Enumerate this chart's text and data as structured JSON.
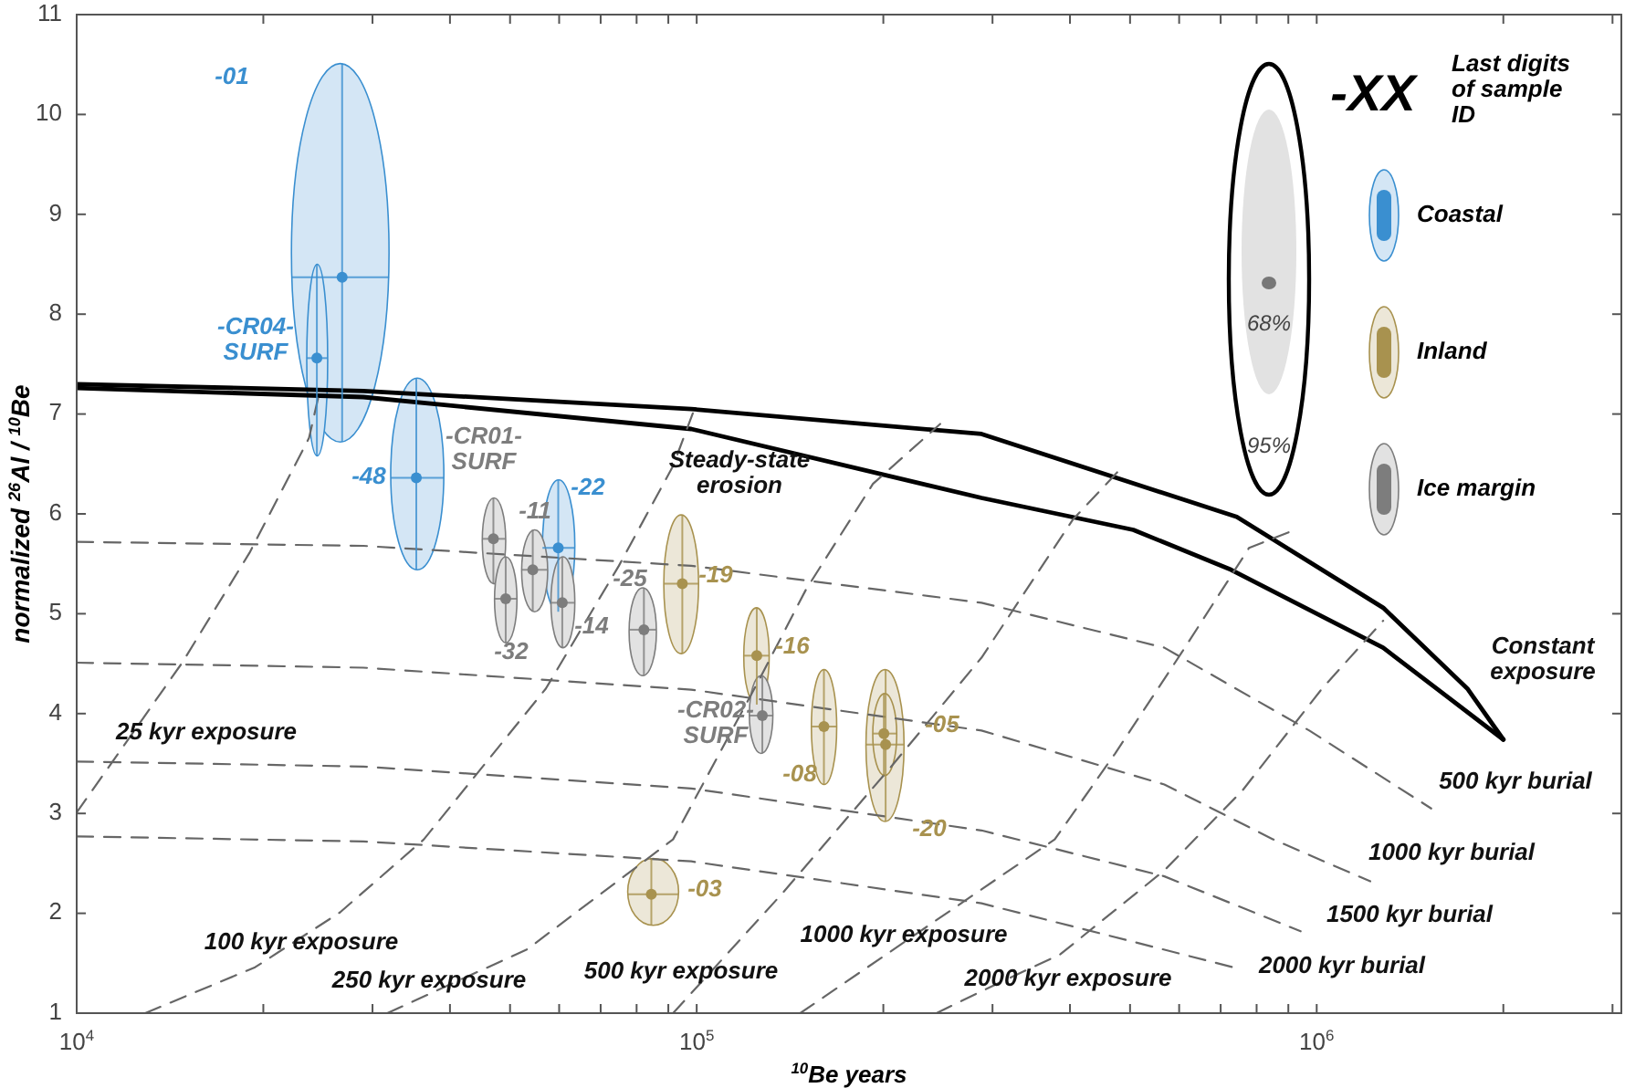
{
  "chart_data": {
    "type": "scatter",
    "xlabel": "$^{10}$Be years",
    "ylabel": "normalized $^{26}$Al / $^{10}$Be",
    "legend_title": "Last digits of sample ID",
    "log": "x",
    "legend": "top right",
    "grid": false,
    "xlim": [
      10000,
      3100000
    ],
    "ylim": [
      1,
      11
    ],
    "xticks": [
      {
        "value": 10000,
        "label": "10$^{4}$"
      },
      {
        "value": 20000,
        "label": null
      },
      {
        "value": 30000,
        "label": null
      },
      {
        "value": 40000,
        "label": null
      },
      {
        "value": 50000,
        "label": null
      },
      {
        "value": 60000,
        "label": null
      },
      {
        "value": 70000,
        "label": null
      },
      {
        "value": 80000,
        "label": null
      },
      {
        "value": 90000,
        "label": null
      },
      {
        "value": 100000,
        "label": "10$^{5}$"
      },
      {
        "value": 200000,
        "label": null
      },
      {
        "value": 300000,
        "label": null
      },
      {
        "value": 400000,
        "label": null
      },
      {
        "value": 500000,
        "label": null
      },
      {
        "value": 600000,
        "label": null
      },
      {
        "value": 700000,
        "label": null
      },
      {
        "value": 800000,
        "label": null
      },
      {
        "value": 900000,
        "label": null
      },
      {
        "value": 1000000,
        "label": "10$^{6}$"
      },
      {
        "value": 2000000,
        "label": null
      },
      {
        "value": 3000000,
        "label": null
      }
    ],
    "yticks": [
      1,
      2,
      3,
      4,
      5,
      6,
      7,
      8,
      9,
      10,
      11
    ],
    "series": [
      {
        "type": "line",
        "color": "#000000",
        "line_style": "solid",
        "x": [
          10000,
          29000,
          98000,
          288000,
          743000,
          1280000,
          1750000,
          2000000
        ],
        "values": [
          7.3,
          7.23,
          7.05,
          6.8,
          5.97,
          5.06,
          4.25,
          3.74
        ]
      },
      {
        "type": "line",
        "color": "#000000",
        "line_style": "solid",
        "x": [
          10000,
          29000,
          98000,
          288000,
          506000,
          728000,
          1280000,
          2000000
        ],
        "values": [
          7.26,
          7.17,
          6.85,
          6.16,
          5.84,
          5.44,
          4.66,
          3.74
        ]
      },
      {
        "type": "line",
        "color": "#666666",
        "line_style": "dashed",
        "x": [
          10000,
          14800,
          19000,
          23700,
          24700
        ],
        "values": [
          3.01,
          4.51,
          5.61,
          6.76,
          7.25
        ]
      },
      {
        "type": "line",
        "color": "#666666",
        "line_style": "dashed",
        "x": [
          12900,
          19400,
          26600,
          36300,
          57100,
          74900,
          91600,
          98600
        ],
        "values": [
          1.0,
          1.46,
          2.01,
          2.74,
          4.25,
          5.48,
          6.48,
          7.01
        ]
      },
      {
        "type": "line",
        "color": "#666666",
        "line_style": "dashed",
        "x": [
          31700,
          53300,
          91600,
          125900,
          150000,
          192400,
          247000
        ],
        "values": [
          1.0,
          1.64,
          2.74,
          4.33,
          5.24,
          6.3,
          6.9
        ]
      },
      {
        "type": "line",
        "color": "#666666",
        "line_style": "dashed",
        "x": [
          91600,
          137000,
          206000,
          288000,
          404000,
          479000
        ],
        "values": [
          1.0,
          2.19,
          3.47,
          4.56,
          5.94,
          6.43
        ]
      },
      {
        "type": "line",
        "color": "#666666",
        "line_style": "dashed",
        "x": [
          146900,
          288000,
          378000,
          473000,
          607000,
          778000,
          922000
        ],
        "values": [
          1.0,
          2.24,
          2.74,
          3.6,
          4.62,
          5.66,
          5.84
        ]
      },
      {
        "type": "line",
        "color": "#666666",
        "line_style": "dashed",
        "x": [
          243700,
          288000,
          386000,
          568000,
          759000,
          1020000,
          1280000
        ],
        "values": [
          1.0,
          1.22,
          1.59,
          2.43,
          3.23,
          4.25,
          4.93
        ]
      },
      {
        "type": "line",
        "color": "#666666",
        "line_style": "dashed",
        "x": [
          10000,
          29000,
          98000,
          288000,
          568000,
          973000,
          1530000
        ],
        "values": [
          5.72,
          5.68,
          5.48,
          5.11,
          4.66,
          3.83,
          3.05
        ]
      },
      {
        "type": "line",
        "color": "#666666",
        "line_style": "dashed",
        "x": [
          10000,
          29000,
          98000,
          288000,
          568000,
          851000,
          1220000
        ],
        "values": [
          4.51,
          4.46,
          4.24,
          3.83,
          3.29,
          2.74,
          2.32
        ]
      },
      {
        "type": "line",
        "color": "#666666",
        "line_style": "dashed",
        "x": [
          10000,
          29000,
          98000,
          288000,
          568000,
          942000
        ],
        "values": [
          3.52,
          3.47,
          3.25,
          2.83,
          2.37,
          1.82
        ]
      },
      {
        "type": "line",
        "color": "#666666",
        "line_style": "dashed",
        "x": [
          10000,
          29000,
          98000,
          288000,
          495000,
          733000
        ],
        "values": [
          2.77,
          2.72,
          2.52,
          2.1,
          1.73,
          1.46
        ]
      },
      {
        "type": "scatter",
        "name": "Coastal",
        "color": "#3a8fd0",
        "marker": "circle",
        "x": [
          26800,
          24400,
          35300,
          59800
        ],
        "values": [
          8.37,
          7.56,
          6.36,
          5.66
        ],
        "xerrors": [
          [
            22200,
            31900
          ],
          [
            23500,
            25400
          ],
          [
            32100,
            39100
          ],
          [
            56400,
            63600
          ]
        ],
        "errors": [
          [
            6.72,
            10.51
          ],
          [
            6.58,
            8.5
          ],
          [
            5.44,
            7.36
          ],
          [
            5.02,
            6.34
          ]
        ]
      },
      {
        "type": "scatter",
        "name": "Inland",
        "color": "#a8924f",
        "marker": "circle",
        "x": [
          94800,
          125000,
          160400,
          201700,
          200400,
          84500
        ],
        "values": [
          5.3,
          4.58,
          3.87,
          3.69,
          3.8,
          2.19
        ],
        "xerrors": [
          [
            88500,
            100700
          ],
          [
            119100,
            130900
          ],
          [
            153100,
            168200
          ],
          [
            187500,
            216000
          ],
          [
            192300,
            210200
          ],
          [
            77400,
            93500
          ]
        ],
        "errors": [
          [
            4.6,
            5.99
          ],
          [
            4.09,
            5.06
          ],
          [
            3.29,
            4.44
          ],
          [
            2.92,
            4.44
          ],
          [
            3.38,
            4.2
          ],
          [
            1.88,
            2.55
          ]
        ]
      },
      {
        "type": "scatter",
        "name": "Ice margin",
        "color": "#7d7d7d",
        "marker": "circle",
        "x": [
          47000,
          49200,
          54400,
          60700,
          82200,
          127600
        ],
        "values": [
          5.75,
          5.15,
          5.44,
          5.11,
          4.84,
          3.98
        ],
        "xerrors": [
          [
            45100,
            49200
          ],
          [
            47200,
            51300
          ],
          [
            52200,
            57500
          ],
          [
            58200,
            63600
          ],
          [
            77800,
            86100
          ],
          [
            121600,
            132700
          ]
        ],
        "errors": [
          [
            5.3,
            6.16
          ],
          [
            4.71,
            5.57
          ],
          [
            5.02,
            5.84
          ],
          [
            4.66,
            5.57
          ],
          [
            4.38,
            5.26
          ],
          [
            3.6,
            4.38
          ]
        ]
      }
    ],
    "annotations": [
      "-XX",
      "68%",
      "95%",
      "-01",
      "-CR04-\nSURF",
      "-48",
      "-CR01-\nSURF",
      "-11",
      "-22",
      "-32",
      "-14",
      "-25",
      "-19",
      "-16",
      "-CR02-\nSURF",
      "-08",
      "-05",
      "-20",
      "-03",
      "Steady-state\nerosion",
      "Constant\nexposure",
      "25 kyr exposure",
      "100 kyr exposure",
      "250 kyr exposure",
      "500 kyr exposure",
      "1000 kyr exposure",
      "2000 kyr exposure",
      "500 kyr burial",
      "1000 kyr burial",
      "1500 kyr burial",
      "2000 kyr burial"
    ]
  }
}
